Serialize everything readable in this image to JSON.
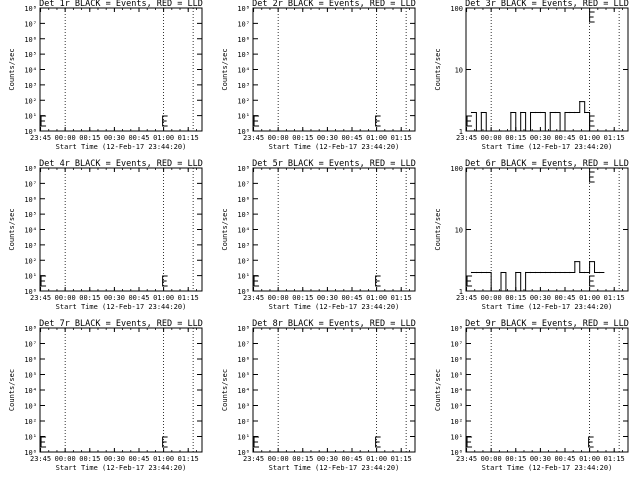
{
  "common": {
    "x_ticks": [
      "23:45",
      "00:00",
      "00:15",
      "00:30",
      "00:45",
      "01:00",
      "01:15"
    ],
    "x_tick_hours": [
      -0.25,
      0.0,
      0.25,
      0.5,
      0.75,
      1.0,
      1.25
    ],
    "xlim_hours": [
      -0.2556,
      1.39
    ],
    "xlabel": "Start Time (12-Feb-17 23:44:20)",
    "ylabel": "Counts/sec",
    "dotted_lines_hours": [
      0.0,
      1.0,
      1.3
    ]
  },
  "chart_data": [
    {
      "type": "line",
      "title": "Det 1r BLACK = Events, RED = LLD",
      "ylim": [
        1,
        100000000
      ],
      "yscale": "log",
      "y_ticks": [
        "10⁰",
        "10¹",
        "10²",
        "10³",
        "10⁴",
        "10⁵",
        "10⁶",
        "10⁷",
        "10⁸"
      ],
      "error_bar_hours": [
        -0.245,
        0.99
      ],
      "series": []
    },
    {
      "type": "line",
      "title": "Det 2r BLACK = Events, RED = LLD",
      "ylim": [
        1,
        100000000
      ],
      "yscale": "log",
      "y_ticks": [
        "10⁰",
        "10¹",
        "10²",
        "10³",
        "10⁴",
        "10⁵",
        "10⁶",
        "10⁷",
        "10⁸"
      ],
      "error_bar_hours": [
        -0.245,
        0.99
      ],
      "series": []
    },
    {
      "type": "line",
      "title": "Det 3r BLACK = Events, RED = LLD",
      "ylim": [
        1,
        100
      ],
      "yscale": "log",
      "y_ticks": [
        "1",
        "10",
        "100"
      ],
      "error_bar_hours": [
        -0.245,
        1.0
      ],
      "series": [
        {
          "x": [
            -0.2,
            -0.15,
            -0.1,
            -0.05,
            0.0,
            0.05,
            0.1,
            0.15,
            0.2,
            0.25,
            0.3,
            0.35,
            0.4,
            0.45,
            0.5,
            0.55,
            0.6,
            0.65,
            0.7,
            0.75,
            0.8,
            0.85,
            0.9,
            0.95,
            1.0
          ],
          "y": [
            2,
            1,
            2,
            1,
            1,
            1,
            1,
            1,
            2,
            1,
            2,
            1,
            2,
            2,
            2,
            1,
            2,
            2,
            1,
            2,
            2,
            2,
            3,
            2,
            1
          ]
        }
      ]
    },
    {
      "type": "line",
      "title": "Det 4r BLACK = Events, RED = LLD",
      "ylim": [
        1,
        100000000
      ],
      "yscale": "log",
      "y_ticks": [
        "10⁰",
        "10¹",
        "10²",
        "10³",
        "10⁴",
        "10⁵",
        "10⁶",
        "10⁷",
        "10⁸"
      ],
      "error_bar_hours": [
        -0.245,
        0.99
      ],
      "series": []
    },
    {
      "type": "line",
      "title": "Det 5r BLACK = Events, RED = LLD",
      "ylim": [
        1,
        100000000
      ],
      "yscale": "log",
      "y_ticks": [
        "10⁰",
        "10¹",
        "10²",
        "10³",
        "10⁴",
        "10⁵",
        "10⁶",
        "10⁷",
        "10⁸"
      ],
      "error_bar_hours": [
        -0.245,
        0.99
      ],
      "series": []
    },
    {
      "type": "line",
      "title": "Det 6r BLACK = Events, RED = LLD",
      "ylim": [
        1,
        100
      ],
      "yscale": "log",
      "y_ticks": [
        "1",
        "10",
        "100"
      ],
      "error_bar_hours": [
        -0.245,
        1.0
      ],
      "series": [
        {
          "x": [
            -0.2,
            -0.15,
            -0.1,
            -0.05,
            0.0,
            0.05,
            0.1,
            0.15,
            0.2,
            0.25,
            0.3,
            0.35,
            0.4,
            0.45,
            0.5,
            0.55,
            0.6,
            0.65,
            0.7,
            0.75,
            0.8,
            0.85,
            0.9,
            0.95,
            1.0,
            1.05,
            1.1
          ],
          "y": [
            2,
            2,
            2,
            2,
            1,
            1,
            2,
            1,
            1,
            2,
            1,
            2,
            2,
            2,
            2,
            2,
            2,
            2,
            2,
            2,
            2,
            3,
            2,
            2,
            3,
            2,
            2
          ]
        }
      ]
    },
    {
      "type": "line",
      "title": "Det 7r BLACK = Events, RED = LLD",
      "ylim": [
        1,
        100000000
      ],
      "yscale": "log",
      "y_ticks": [
        "10⁰",
        "10¹",
        "10²",
        "10³",
        "10⁴",
        "10⁵",
        "10⁶",
        "10⁷",
        "10⁸"
      ],
      "error_bar_hours": [
        -0.245,
        0.99
      ],
      "series": []
    },
    {
      "type": "line",
      "title": "Det 8r BLACK = Events, RED = LLD",
      "ylim": [
        1,
        100000000
      ],
      "yscale": "log",
      "y_ticks": [
        "10⁰",
        "10¹",
        "10²",
        "10³",
        "10⁴",
        "10⁵",
        "10⁶",
        "10⁷",
        "10⁸"
      ],
      "error_bar_hours": [
        -0.245,
        0.99
      ],
      "series": []
    },
    {
      "type": "line",
      "title": "Det 9r BLACK = Events, RED = LLD",
      "ylim": [
        1,
        100000000
      ],
      "yscale": "log",
      "y_ticks": [
        "10⁰",
        "10¹",
        "10²",
        "10³",
        "10⁴",
        "10⁵",
        "10⁶",
        "10⁷",
        "10⁸"
      ],
      "error_bar_hours": [
        -0.245,
        0.99
      ],
      "series": []
    }
  ]
}
